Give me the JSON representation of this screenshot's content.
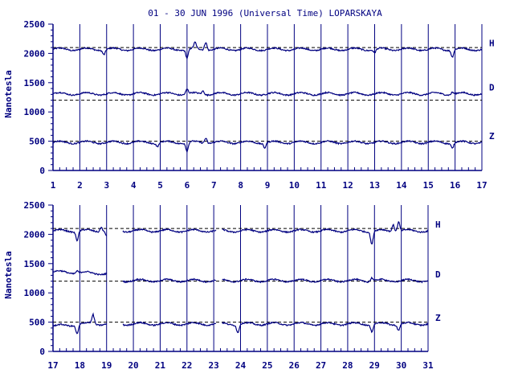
{
  "title": "01 - 30 JUN 1996 (Universal Time) LOPARSKAYA",
  "colors": {
    "axis": "#000080",
    "trace": "#000080",
    "baseline": "#000000",
    "background": "#ffffff"
  },
  "chart_data": [
    {
      "type": "line",
      "ylabel": "Nanotesla",
      "ylim": [
        0,
        2500
      ],
      "yticks": [
        "0",
        "500",
        "1000",
        "1500",
        "2000",
        "2500"
      ],
      "xlim": [
        1,
        17
      ],
      "xticks": [
        "1",
        "2",
        "3",
        "4",
        "5",
        "6",
        "7",
        "8",
        "9",
        "10",
        "11",
        "12",
        "13",
        "14",
        "15",
        "16",
        "17"
      ],
      "grid": "vertical lines at each day",
      "series": [
        {
          "name": "H",
          "baseline": 2100,
          "level": 2070,
          "gaps": [],
          "disturbances": [
            [
              6.0,
              -150
            ],
            [
              6.3,
              100
            ],
            [
              6.7,
              140
            ],
            [
              15.9,
              -120
            ],
            [
              13.0,
              -60
            ],
            [
              2.9,
              -80
            ]
          ]
        },
        {
          "name": "D",
          "baseline": 1200,
          "level": 1310,
          "gaps": [],
          "disturbances": [
            [
              6.0,
              80
            ],
            [
              6.6,
              60
            ],
            [
              15.9,
              40
            ]
          ]
        },
        {
          "name": "Z",
          "baseline": 500,
          "level": 480,
          "gaps": [],
          "disturbances": [
            [
              6.0,
              -150
            ],
            [
              6.7,
              90
            ],
            [
              8.9,
              -80
            ],
            [
              15.9,
              -90
            ],
            [
              4.9,
              -60
            ]
          ]
        }
      ]
    },
    {
      "type": "line",
      "ylabel": "Nanotesla",
      "ylim": [
        0,
        2500
      ],
      "yticks": [
        "0",
        "500",
        "1000",
        "1500",
        "2000",
        "2500"
      ],
      "xlim": [
        17,
        31
      ],
      "xticks": [
        "17",
        "18",
        "19",
        "20",
        "21",
        "22",
        "23",
        "24",
        "25",
        "26",
        "27",
        "28",
        "29",
        "30",
        "31"
      ],
      "grid": "vertical lines at each day",
      "series": [
        {
          "name": "H",
          "baseline": 2100,
          "level": 2060,
          "gaps": [
            [
              19.0,
              19.6
            ],
            [
              23.1,
              23.3
            ]
          ],
          "disturbances": [
            [
              17.9,
              -150
            ],
            [
              18.8,
              80
            ],
            [
              28.9,
              -220
            ],
            [
              29.7,
              120
            ],
            [
              29.9,
              160
            ],
            [
              19.0,
              -80
            ]
          ]
        },
        {
          "name": "D",
          "baseline": 1200,
          "level": 1210,
          "gaps": [
            [
              19.0,
              19.6
            ],
            [
              23.1,
              23.3
            ]
          ],
          "early": [
            [
              17.0,
              1360
            ],
            [
              19.0,
              1330
            ]
          ],
          "disturbances": [
            [
              28.9,
              60
            ],
            [
              17.9,
              40
            ]
          ]
        },
        {
          "name": "Z",
          "baseline": 500,
          "level": 470,
          "gaps": [
            [
              19.0,
              19.6
            ],
            [
              23.1,
              23.3
            ]
          ],
          "early": [
            [
              17.0,
              430
            ],
            [
              18.5,
              480
            ]
          ],
          "disturbances": [
            [
              17.9,
              -150
            ],
            [
              18.5,
              150
            ],
            [
              23.9,
              -140
            ],
            [
              28.9,
              -120
            ],
            [
              29.9,
              -100
            ]
          ]
        }
      ]
    }
  ]
}
